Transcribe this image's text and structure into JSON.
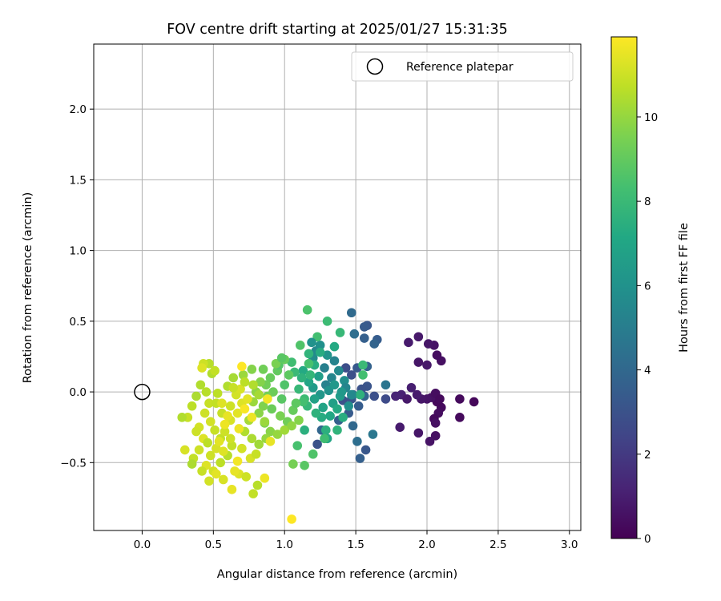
{
  "chart_data": {
    "type": "scatter",
    "title": "FOV centre drift starting at 2025/01/27 15:31:35",
    "xlabel": "Angular distance from reference (arcmin)",
    "ylabel": "Rotation from reference (arcmin)",
    "xlim": [
      -0.34,
      3.08
    ],
    "ylim": [
      -0.98,
      2.46
    ],
    "xticks": [
      0.0,
      0.5,
      1.0,
      1.5,
      2.0,
      2.5,
      3.0
    ],
    "xtick_labels": [
      "0.0",
      "0.5",
      "1.0",
      "1.5",
      "2.0",
      "2.5",
      "3.0"
    ],
    "yticks": [
      -0.5,
      0.0,
      0.5,
      1.0,
      1.5,
      2.0
    ],
    "ytick_labels": [
      "−0.5",
      "0.0",
      "0.5",
      "1.0",
      "1.5",
      "2.0"
    ],
    "grid": true,
    "legend": {
      "placement": "top-right",
      "entries": [
        "Reference platepar"
      ]
    },
    "reference_point": {
      "x": 0.0,
      "y": 0.0
    },
    "colorbar": {
      "label": "Hours from first FF file",
      "colormap": "viridis",
      "range": [
        0,
        11.9
      ],
      "ticks": [
        0,
        2,
        4,
        6,
        8,
        10
      ],
      "tick_labels": [
        "0",
        "2",
        "4",
        "6",
        "8",
        "10"
      ]
    },
    "points": [
      [
        2.33,
        -0.07,
        0.2
      ],
      [
        2.23,
        -0.05,
        0.3
      ],
      [
        2.23,
        -0.18,
        0.3
      ],
      [
        2.1,
        0.22,
        0.5
      ],
      [
        2.07,
        0.26,
        0.4
      ],
      [
        2.05,
        0.33,
        0.6
      ],
      [
        2.01,
        0.34,
        0.7
      ],
      [
        1.94,
        0.39,
        0.8
      ],
      [
        1.87,
        0.35,
        0.9
      ],
      [
        2.0,
        0.19,
        0.8
      ],
      [
        1.94,
        0.21,
        0.7
      ],
      [
        2.1,
        -0.11,
        0.3
      ],
      [
        2.07,
        -0.07,
        0.2
      ],
      [
        2.08,
        -0.15,
        0.4
      ],
      [
        2.05,
        -0.19,
        0.3
      ],
      [
        2.06,
        -0.22,
        0.5
      ],
      [
        2.03,
        -0.04,
        0.5
      ],
      [
        2.0,
        -0.05,
        0.6
      ],
      [
        1.96,
        -0.05,
        0.7
      ],
      [
        2.06,
        -0.01,
        0.4
      ],
      [
        1.89,
        0.03,
        1.0
      ],
      [
        1.82,
        -0.02,
        1.1
      ],
      [
        1.78,
        -0.03,
        1.2
      ],
      [
        2.06,
        -0.31,
        0.5
      ],
      [
        2.02,
        -0.35,
        0.6
      ],
      [
        1.94,
        -0.29,
        0.7
      ],
      [
        1.81,
        -0.25,
        0.9
      ],
      [
        1.86,
        -0.05,
        0.8
      ],
      [
        1.93,
        -0.02,
        0.9
      ],
      [
        2.09,
        -0.05,
        0.3
      ],
      [
        1.58,
        0.47,
        3.2
      ],
      [
        1.56,
        0.46,
        3.4
      ],
      [
        1.65,
        0.37,
        3.5
      ],
      [
        1.63,
        0.34,
        3.8
      ],
      [
        1.56,
        0.38,
        3.6
      ],
      [
        1.47,
        0.56,
        4.1
      ],
      [
        1.49,
        0.41,
        4.3
      ],
      [
        1.58,
        0.18,
        3.7
      ],
      [
        1.51,
        0.17,
        3.3
      ],
      [
        1.58,
        0.04,
        3.1
      ],
      [
        1.47,
        0.12,
        2.9
      ],
      [
        1.43,
        0.17,
        2.8
      ],
      [
        1.71,
        -0.05,
        2.7
      ],
      [
        1.63,
        -0.03,
        2.9
      ],
      [
        1.71,
        0.05,
        4.6
      ],
      [
        1.52,
        -0.1,
        3.5
      ],
      [
        1.47,
        -0.05,
        3.2
      ],
      [
        1.41,
        -0.06,
        3.0
      ],
      [
        1.45,
        -0.15,
        3.4
      ],
      [
        1.48,
        -0.24,
        4.0
      ],
      [
        1.57,
        -0.41,
        3.2
      ],
      [
        1.53,
        -0.47,
        3.6
      ],
      [
        1.51,
        -0.35,
        4.3
      ],
      [
        1.62,
        -0.3,
        4.7
      ],
      [
        1.26,
        -0.27,
        3.9
      ],
      [
        1.23,
        -0.37,
        3.0
      ],
      [
        1.38,
        -0.2,
        3.6
      ],
      [
        1.48,
        -0.02,
        4.2
      ],
      [
        1.56,
        -0.03,
        3.8
      ],
      [
        1.54,
        0.02,
        3.0
      ],
      [
        1.29,
        0.05,
        5.2
      ],
      [
        1.33,
        0.1,
        5.4
      ],
      [
        1.38,
        0.15,
        5.6
      ],
      [
        1.42,
        0.08,
        5.8
      ],
      [
        1.31,
        0.01,
        6.0
      ],
      [
        1.25,
        -0.02,
        6.2
      ],
      [
        1.2,
        0.03,
        6.4
      ],
      [
        1.24,
        0.11,
        6.6
      ],
      [
        1.28,
        0.17,
        5.1
      ],
      [
        1.35,
        0.22,
        5.3
      ],
      [
        1.22,
        0.29,
        5.5
      ],
      [
        1.2,
        0.24,
        5.7
      ],
      [
        1.25,
        0.33,
        5.9
      ],
      [
        1.3,
        0.26,
        6.1
      ],
      [
        1.35,
        0.05,
        6.3
      ],
      [
        1.39,
        -0.03,
        6.5
      ],
      [
        1.34,
        -0.08,
        6.7
      ],
      [
        1.27,
        -0.11,
        6.9
      ],
      [
        1.32,
        -0.17,
        7.1
      ],
      [
        1.26,
        -0.18,
        7.3
      ],
      [
        1.21,
        -0.05,
        6.8
      ],
      [
        1.17,
        0.07,
        7.0
      ],
      [
        1.13,
        0.15,
        7.2
      ],
      [
        1.43,
        0.03,
        5.4
      ],
      [
        1.45,
        -0.1,
        5.9
      ],
      [
        1.4,
        0.0,
        6.3
      ],
      [
        1.29,
        -0.27,
        7.5
      ],
      [
        1.37,
        -0.12,
        7.2
      ],
      [
        1.41,
        -0.18,
        7.4
      ],
      [
        1.3,
        -0.33,
        7.0
      ],
      [
        1.21,
        0.19,
        7.4
      ],
      [
        1.17,
        0.27,
        7.7
      ],
      [
        1.25,
        0.28,
        7.3
      ],
      [
        1.18,
        0.12,
        7.8
      ],
      [
        1.12,
        0.1,
        7.6
      ],
      [
        1.1,
        0.02,
        7.9
      ],
      [
        1.14,
        -0.05,
        8.1
      ],
      [
        1.16,
        -0.1,
        7.8
      ],
      [
        1.22,
        -0.15,
        7.6
      ],
      [
        1.07,
        0.14,
        8.0
      ],
      [
        1.05,
        0.21,
        8.2
      ],
      [
        1.17,
        0.2,
        8.4
      ],
      [
        1.13,
        -0.07,
        8.3
      ],
      [
        1.35,
        0.32,
        7.2
      ],
      [
        1.39,
        0.42,
        7.9
      ],
      [
        1.3,
        0.5,
        8.1
      ],
      [
        1.23,
        0.39,
        8.3
      ],
      [
        1.16,
        0.58,
        8.5
      ],
      [
        1.19,
        0.35,
        6.0
      ],
      [
        1.55,
        0.19,
        8.0
      ],
      [
        1.55,
        0.12,
        8.3
      ],
      [
        1.53,
        -0.02,
        7.6
      ],
      [
        1.37,
        -0.27,
        7.7
      ],
      [
        1.28,
        -0.33,
        8.2
      ],
      [
        1.14,
        -0.27,
        7.5
      ],
      [
        1.09,
        -0.38,
        8.4
      ],
      [
        1.2,
        -0.44,
        8.6
      ],
      [
        1.14,
        -0.52,
        8.8
      ],
      [
        1.06,
        -0.51,
        9.4
      ],
      [
        1.47,
        -0.02,
        5.5
      ],
      [
        0.95,
        0.15,
        9.0
      ],
      [
        0.9,
        0.1,
        9.1
      ],
      [
        0.87,
        0.05,
        9.3
      ],
      [
        0.92,
        0.0,
        9.2
      ],
      [
        0.98,
        -0.05,
        8.8
      ],
      [
        1.0,
        0.05,
        8.6
      ],
      [
        1.03,
        0.12,
        8.9
      ],
      [
        0.96,
        0.19,
        8.7
      ],
      [
        0.88,
        -0.03,
        9.4
      ],
      [
        0.85,
        -0.1,
        9.6
      ],
      [
        0.91,
        -0.12,
        9.2
      ],
      [
        0.97,
        -0.17,
        9.5
      ],
      [
        1.02,
        -0.21,
        9.3
      ],
      [
        1.06,
        -0.13,
        9.1
      ],
      [
        1.08,
        -0.08,
        8.9
      ],
      [
        0.83,
        0.07,
        9.7
      ],
      [
        0.8,
        0.0,
        9.9
      ],
      [
        0.78,
        -0.07,
        10.1
      ],
      [
        0.82,
        -0.15,
        9.8
      ],
      [
        0.86,
        -0.22,
        9.6
      ],
      [
        0.9,
        -0.28,
        9.8
      ],
      [
        0.95,
        -0.3,
        10.0
      ],
      [
        1.0,
        -0.27,
        10.2
      ],
      [
        1.05,
        -0.24,
        9.9
      ],
      [
        1.1,
        -0.2,
        9.7
      ],
      [
        0.75,
        -0.2,
        10.3
      ],
      [
        0.72,
        -0.28,
        10.5
      ],
      [
        0.77,
        -0.33,
        10.4
      ],
      [
        0.82,
        -0.37,
        10.2
      ],
      [
        0.87,
        -0.33,
        10.0
      ],
      [
        1.0,
        0.23,
        9.1
      ],
      [
        0.94,
        0.2,
        9.5
      ],
      [
        1.11,
        0.33,
        8.6
      ],
      [
        0.98,
        0.24,
        8.8
      ],
      [
        0.85,
        0.16,
        9.3
      ],
      [
        0.77,
        0.16,
        9.7
      ],
      [
        0.71,
        0.12,
        10.1
      ],
      [
        0.64,
        0.1,
        10.3
      ],
      [
        0.6,
        0.04,
        10.5
      ],
      [
        0.53,
        -0.01,
        10.7
      ],
      [
        0.47,
        -0.08,
        10.9
      ],
      [
        0.44,
        -0.15,
        11.0
      ],
      [
        0.48,
        -0.21,
        11.1
      ],
      [
        0.51,
        -0.27,
        10.9
      ],
      [
        0.55,
        -0.33,
        10.8
      ],
      [
        0.52,
        -0.4,
        11.2
      ],
      [
        0.48,
        -0.45,
        11.0
      ],
      [
        0.45,
        -0.52,
        11.3
      ],
      [
        0.5,
        -0.56,
        11.1
      ],
      [
        0.55,
        -0.5,
        10.7
      ],
      [
        0.6,
        -0.45,
        10.6
      ],
      [
        0.63,
        -0.38,
        10.8
      ],
      [
        0.58,
        -0.28,
        11.0
      ],
      [
        0.62,
        -0.2,
        11.2
      ],
      [
        0.67,
        -0.15,
        11.4
      ],
      [
        0.7,
        -0.08,
        11.3
      ],
      [
        0.66,
        -0.02,
        11.1
      ],
      [
        0.62,
        -0.1,
        11.0
      ],
      [
        0.56,
        -0.15,
        10.9
      ],
      [
        0.52,
        -0.08,
        10.8
      ],
      [
        0.45,
        0.0,
        10.6
      ],
      [
        0.41,
        0.05,
        10.5
      ],
      [
        0.38,
        -0.03,
        10.4
      ],
      [
        0.35,
        -0.1,
        10.7
      ],
      [
        0.32,
        -0.18,
        10.9
      ],
      [
        0.4,
        -0.25,
        11.1
      ],
      [
        0.43,
        -0.33,
        11.3
      ],
      [
        0.4,
        -0.41,
        11.0
      ],
      [
        0.36,
        -0.47,
        10.8
      ],
      [
        0.3,
        -0.41,
        11.2
      ],
      [
        0.28,
        -0.18,
        10.5
      ],
      [
        0.35,
        -0.51,
        10.4
      ],
      [
        0.42,
        -0.56,
        10.9
      ],
      [
        0.47,
        -0.63,
        11.1
      ],
      [
        0.52,
        -0.58,
        11.4
      ],
      [
        0.57,
        -0.62,
        11.2
      ],
      [
        0.63,
        -0.69,
        11.5
      ],
      [
        0.68,
        -0.58,
        11.3
      ],
      [
        0.73,
        -0.6,
        11.0
      ],
      [
        0.78,
        -0.72,
        10.8
      ],
      [
        0.81,
        -0.66,
        10.6
      ],
      [
        0.86,
        -0.61,
        11.6
      ],
      [
        0.76,
        -0.47,
        11.2
      ],
      [
        0.8,
        -0.44,
        10.9
      ],
      [
        0.7,
        -0.4,
        11.1
      ],
      [
        0.67,
        -0.49,
        11.7
      ],
      [
        0.65,
        -0.56,
        11.5
      ],
      [
        0.57,
        -0.42,
        11.3
      ],
      [
        0.62,
        -0.33,
        11.0
      ],
      [
        0.68,
        -0.26,
        11.6
      ],
      [
        0.72,
        -0.12,
        11.8
      ],
      [
        0.77,
        -0.18,
        11.6
      ],
      [
        0.74,
        -0.05,
        11.4
      ],
      [
        0.69,
        0.02,
        11.2
      ],
      [
        0.64,
        0.03,
        10.9
      ],
      [
        0.49,
        0.13,
        10.5
      ],
      [
        0.47,
        0.2,
        10.6
      ],
      [
        0.51,
        0.15,
        10.8
      ],
      [
        0.43,
        0.2,
        11.0
      ],
      [
        0.42,
        0.17,
        11.3
      ],
      [
        0.7,
        0.18,
        11.9
      ],
      [
        0.72,
        0.07,
        10.7
      ],
      [
        0.78,
        0.05,
        10.5
      ],
      [
        0.82,
        -0.02,
        10.3
      ],
      [
        0.9,
        -0.35,
        11.5
      ],
      [
        0.88,
        -0.05,
        11.7
      ],
      [
        1.05,
        -0.9,
        11.9
      ],
      [
        0.86,
        -0.21,
        10.1
      ],
      [
        0.58,
        -0.23,
        11.6
      ],
      [
        0.54,
        -0.35,
        11.4
      ],
      [
        0.38,
        -0.28,
        11.0
      ],
      [
        0.46,
        -0.36,
        10.7
      ],
      [
        0.56,
        -0.08,
        11.3
      ],
      [
        0.6,
        -0.17,
        11.5
      ]
    ]
  }
}
